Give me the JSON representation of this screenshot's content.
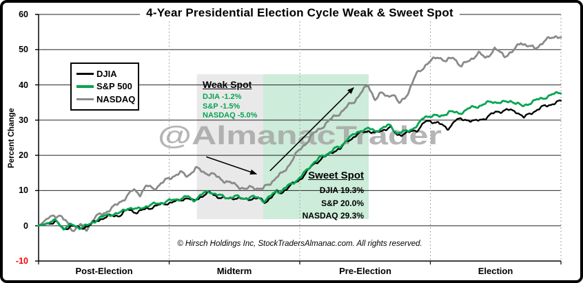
{
  "title": "4-Year Presidential Election Cycle Weak & Sweet Spot",
  "watermark": "@AlmanacTrader",
  "copyright": "© Hirsch Holdings Inc, StockTradersAlmanac.com. All rights reserved.",
  "colors": {
    "djia": "#000000",
    "sp500": "#00A550",
    "nasdaq": "#8a8a8a",
    "weak_fill": "#e9e9e9",
    "sweet_fill": "#cdecd9",
    "gridline": "#222222",
    "dashed_gridline": "#a6a6a6",
    "negative_tick": "#ff0000",
    "watermark": "#a3a3a3",
    "weak_text": "#00A550"
  },
  "y_axis": {
    "label": "Percent Change",
    "ticks": [
      60,
      50,
      40,
      30,
      20,
      10,
      0,
      -10
    ]
  },
  "x_axis": {
    "labels": [
      "Post-Election",
      "Midterm",
      "Pre-Election",
      "Election"
    ]
  },
  "legend": [
    {
      "label": "DJIA",
      "color": "#000000"
    },
    {
      "label": "S&P 500",
      "color": "#00A550"
    },
    {
      "label": "NASDAQ",
      "color": "#8a8a8a"
    }
  ],
  "annotations": {
    "weak": {
      "title": "Weak Spot",
      "lines": [
        "DJIA -1.2%",
        "S&P -1.5%",
        "NASDAQ -5.0%"
      ]
    },
    "sweet": {
      "title": "Sweet Spot",
      "lines": [
        "DJIA 19.3%",
        "S&P 20.0%",
        "NASDAQ 29.3%"
      ]
    },
    "arrows": [
      {
        "name": "weak-decline-arrow",
        "from": [
          0.321,
          19.6
        ],
        "to": [
          0.417,
          14.7
        ]
      },
      {
        "name": "sweet-rally-arrow",
        "from": [
          0.443,
          15.6
        ],
        "to": [
          0.603,
          39.2
        ]
      }
    ]
  },
  "chart_data": {
    "type": "line",
    "title": "4-Year Presidential Election Cycle Weak & Sweet Spot",
    "xlabel": "",
    "ylabel": "Percent Change",
    "ylim": [
      -10,
      60
    ],
    "grid": true,
    "legend_position": "upper-left",
    "x_categories": [
      "Post-Election",
      "Midterm",
      "Pre-Election",
      "Election"
    ],
    "x_unit": "fraction of 4-year cycle (0 = start Post-Election year, 1 = end Election year)",
    "regions": [
      {
        "name": "Weak Spot",
        "x_from": 0.303,
        "x_to": 0.43,
        "v_top": 43.0,
        "v_bottom": 1.9,
        "fill": "#e9e9e9",
        "stats": {
          "DJIA": -1.2,
          "S&P": -1.5,
          "NASDAQ": -5.0
        }
      },
      {
        "name": "Sweet Spot",
        "x_from": 0.43,
        "x_to": 0.632,
        "v_top": 43.0,
        "v_bottom": 1.9,
        "fill": "#cdecd9",
        "stats": {
          "DJIA": 19.3,
          "S&P": 20.0,
          "NASDAQ": 29.3
        }
      }
    ],
    "series": [
      {
        "name": "DJIA",
        "color": "#000000",
        "points": [
          [
            0,
            0
          ],
          [
            0.017,
            0.6
          ],
          [
            0.034,
            1.2
          ],
          [
            0.047,
            -1.0
          ],
          [
            0.063,
            0.0
          ],
          [
            0.079,
            -0.7
          ],
          [
            0.096,
            0.0
          ],
          [
            0.116,
            1.8
          ],
          [
            0.136,
            2.8
          ],
          [
            0.156,
            3.0
          ],
          [
            0.172,
            4.6
          ],
          [
            0.189,
            3.8
          ],
          [
            0.206,
            4.8
          ],
          [
            0.224,
            5.6
          ],
          [
            0.245,
            6.4
          ],
          [
            0.264,
            6.9
          ],
          [
            0.285,
            8.0
          ],
          [
            0.296,
            6.9
          ],
          [
            0.314,
            8.6
          ],
          [
            0.327,
            9.4
          ],
          [
            0.343,
            8.3
          ],
          [
            0.36,
            7.6
          ],
          [
            0.377,
            8.0
          ],
          [
            0.393,
            7.4
          ],
          [
            0.409,
            7.8
          ],
          [
            0.422,
            7.7
          ],
          [
            0.433,
            6.7
          ],
          [
            0.446,
            8.2
          ],
          [
            0.456,
            9.6
          ],
          [
            0.464,
            9.3
          ],
          [
            0.475,
            10.6
          ],
          [
            0.486,
            11.8
          ],
          [
            0.499,
            13.0
          ],
          [
            0.512,
            15.0
          ],
          [
            0.525,
            17.3
          ],
          [
            0.538,
            18.7
          ],
          [
            0.551,
            19.8
          ],
          [
            0.565,
            21.3
          ],
          [
            0.578,
            21.8
          ],
          [
            0.591,
            24.2
          ],
          [
            0.604,
            25.2
          ],
          [
            0.62,
            26.7
          ],
          [
            0.631,
            27.0
          ],
          [
            0.644,
            26.2
          ],
          [
            0.66,
            27.3
          ],
          [
            0.673,
            27.9
          ],
          [
            0.686,
            25.8
          ],
          [
            0.699,
            26.1
          ],
          [
            0.712,
            26.6
          ],
          [
            0.726,
            27.3
          ],
          [
            0.739,
            29.4
          ],
          [
            0.752,
            29.6
          ],
          [
            0.765,
            29.4
          ],
          [
            0.776,
            28.0
          ],
          [
            0.784,
            27.5
          ],
          [
            0.797,
            30.0
          ],
          [
            0.818,
            30.2
          ],
          [
            0.836,
            29.6
          ],
          [
            0.855,
            30.6
          ],
          [
            0.876,
            32.3
          ],
          [
            0.897,
            32.9
          ],
          [
            0.916,
            32.4
          ],
          [
            0.929,
            30.7
          ],
          [
            0.947,
            32.4
          ],
          [
            0.968,
            33.9
          ],
          [
            0.987,
            34.8
          ],
          [
            1,
            35.3
          ]
        ]
      },
      {
        "name": "S&P 500",
        "color": "#00A550",
        "points": [
          [
            0,
            0
          ],
          [
            0.017,
            0.8
          ],
          [
            0.034,
            1.5
          ],
          [
            0.047,
            -0.8
          ],
          [
            0.063,
            0.3
          ],
          [
            0.079,
            -0.5
          ],
          [
            0.096,
            0.2
          ],
          [
            0.116,
            2.2
          ],
          [
            0.136,
            3.2
          ],
          [
            0.156,
            3.6
          ],
          [
            0.172,
            5.2
          ],
          [
            0.189,
            4.6
          ],
          [
            0.206,
            5.6
          ],
          [
            0.224,
            6.2
          ],
          [
            0.245,
            6.9
          ],
          [
            0.274,
            7.8
          ],
          [
            0.285,
            8.3
          ],
          [
            0.296,
            7.2
          ],
          [
            0.314,
            9.0
          ],
          [
            0.327,
            9.8
          ],
          [
            0.343,
            8.7
          ],
          [
            0.36,
            8.0
          ],
          [
            0.377,
            8.3
          ],
          [
            0.393,
            7.8
          ],
          [
            0.409,
            8.1
          ],
          [
            0.422,
            8.0
          ],
          [
            0.433,
            7.0
          ],
          [
            0.446,
            8.6
          ],
          [
            0.456,
            10.0
          ],
          [
            0.464,
            9.7
          ],
          [
            0.475,
            11.0
          ],
          [
            0.486,
            12.2
          ],
          [
            0.499,
            13.4
          ],
          [
            0.512,
            15.5
          ],
          [
            0.525,
            17.8
          ],
          [
            0.538,
            19.2
          ],
          [
            0.551,
            20.3
          ],
          [
            0.565,
            21.8
          ],
          [
            0.578,
            22.3
          ],
          [
            0.591,
            24.8
          ],
          [
            0.604,
            25.8
          ],
          [
            0.62,
            27.3
          ],
          [
            0.631,
            27.6
          ],
          [
            0.644,
            26.8
          ],
          [
            0.66,
            27.9
          ],
          [
            0.673,
            28.5
          ],
          [
            0.686,
            26.3
          ],
          [
            0.699,
            26.6
          ],
          [
            0.712,
            27.3
          ],
          [
            0.726,
            28.5
          ],
          [
            0.739,
            31.0
          ],
          [
            0.752,
            31.3
          ],
          [
            0.769,
            31.0
          ],
          [
            0.786,
            32.4
          ],
          [
            0.805,
            31.9
          ],
          [
            0.826,
            33.4
          ],
          [
            0.847,
            34.2
          ],
          [
            0.868,
            35.3
          ],
          [
            0.887,
            34.9
          ],
          [
            0.905,
            35.5
          ],
          [
            0.926,
            33.9
          ],
          [
            0.945,
            35.2
          ],
          [
            0.966,
            36.3
          ],
          [
            0.984,
            37.2
          ],
          [
            1,
            38.0
          ]
        ]
      },
      {
        "name": "NASDAQ",
        "color": "#8a8a8a",
        "points": [
          [
            0,
            0
          ],
          [
            0.013,
            1.5
          ],
          [
            0.026,
            2.8
          ],
          [
            0.04,
            3.0
          ],
          [
            0.053,
            1.0
          ],
          [
            0.067,
            -1.3
          ],
          [
            0.079,
            0.3
          ],
          [
            0.091,
            -1.2
          ],
          [
            0.107,
            2.3
          ],
          [
            0.127,
            3.8
          ],
          [
            0.146,
            5.5
          ],
          [
            0.166,
            8.0
          ],
          [
            0.182,
            10.2
          ],
          [
            0.194,
            9.0
          ],
          [
            0.207,
            11.3
          ],
          [
            0.22,
            10.5
          ],
          [
            0.237,
            12.2
          ],
          [
            0.255,
            14.0
          ],
          [
            0.272,
            15.0
          ],
          [
            0.285,
            14.2
          ],
          [
            0.301,
            16.3
          ],
          [
            0.317,
            15.2
          ],
          [
            0.334,
            14.5
          ],
          [
            0.347,
            13.5
          ],
          [
            0.363,
            12.3
          ],
          [
            0.38,
            11.5
          ],
          [
            0.396,
            10.3
          ],
          [
            0.409,
            11.0
          ],
          [
            0.422,
            10.6
          ],
          [
            0.43,
            10.5
          ],
          [
            0.443,
            12.0
          ],
          [
            0.456,
            14.0
          ],
          [
            0.467,
            14.8
          ],
          [
            0.476,
            16.5
          ],
          [
            0.488,
            19.5
          ],
          [
            0.499,
            21.3
          ],
          [
            0.509,
            23.0
          ],
          [
            0.522,
            25.5
          ],
          [
            0.536,
            27.2
          ],
          [
            0.551,
            29.2
          ],
          [
            0.565,
            30.8
          ],
          [
            0.578,
            32.2
          ],
          [
            0.591,
            33.8
          ],
          [
            0.604,
            35.3
          ],
          [
            0.617,
            37.8
          ],
          [
            0.631,
            39.8
          ],
          [
            0.644,
            36.0
          ],
          [
            0.657,
            37.6
          ],
          [
            0.667,
            36.8
          ],
          [
            0.678,
            37.5
          ],
          [
            0.69,
            34.6
          ],
          [
            0.7,
            36.3
          ],
          [
            0.71,
            38.5
          ],
          [
            0.723,
            43.0
          ],
          [
            0.736,
            45.0
          ],
          [
            0.752,
            46.8
          ],
          [
            0.765,
            48.2
          ],
          [
            0.78,
            46.5
          ],
          [
            0.794,
            48.0
          ],
          [
            0.809,
            45.2
          ],
          [
            0.823,
            46.8
          ],
          [
            0.842,
            49.0
          ],
          [
            0.856,
            47.6
          ],
          [
            0.873,
            50.2
          ],
          [
            0.892,
            48.3
          ],
          [
            0.909,
            49.5
          ],
          [
            0.923,
            52.2
          ],
          [
            0.937,
            51.0
          ],
          [
            0.95,
            50.3
          ],
          [
            0.967,
            52.3
          ],
          [
            0.981,
            53.3
          ],
          [
            0.992,
            54.0
          ],
          [
            1,
            53.5
          ]
        ]
      }
    ]
  }
}
